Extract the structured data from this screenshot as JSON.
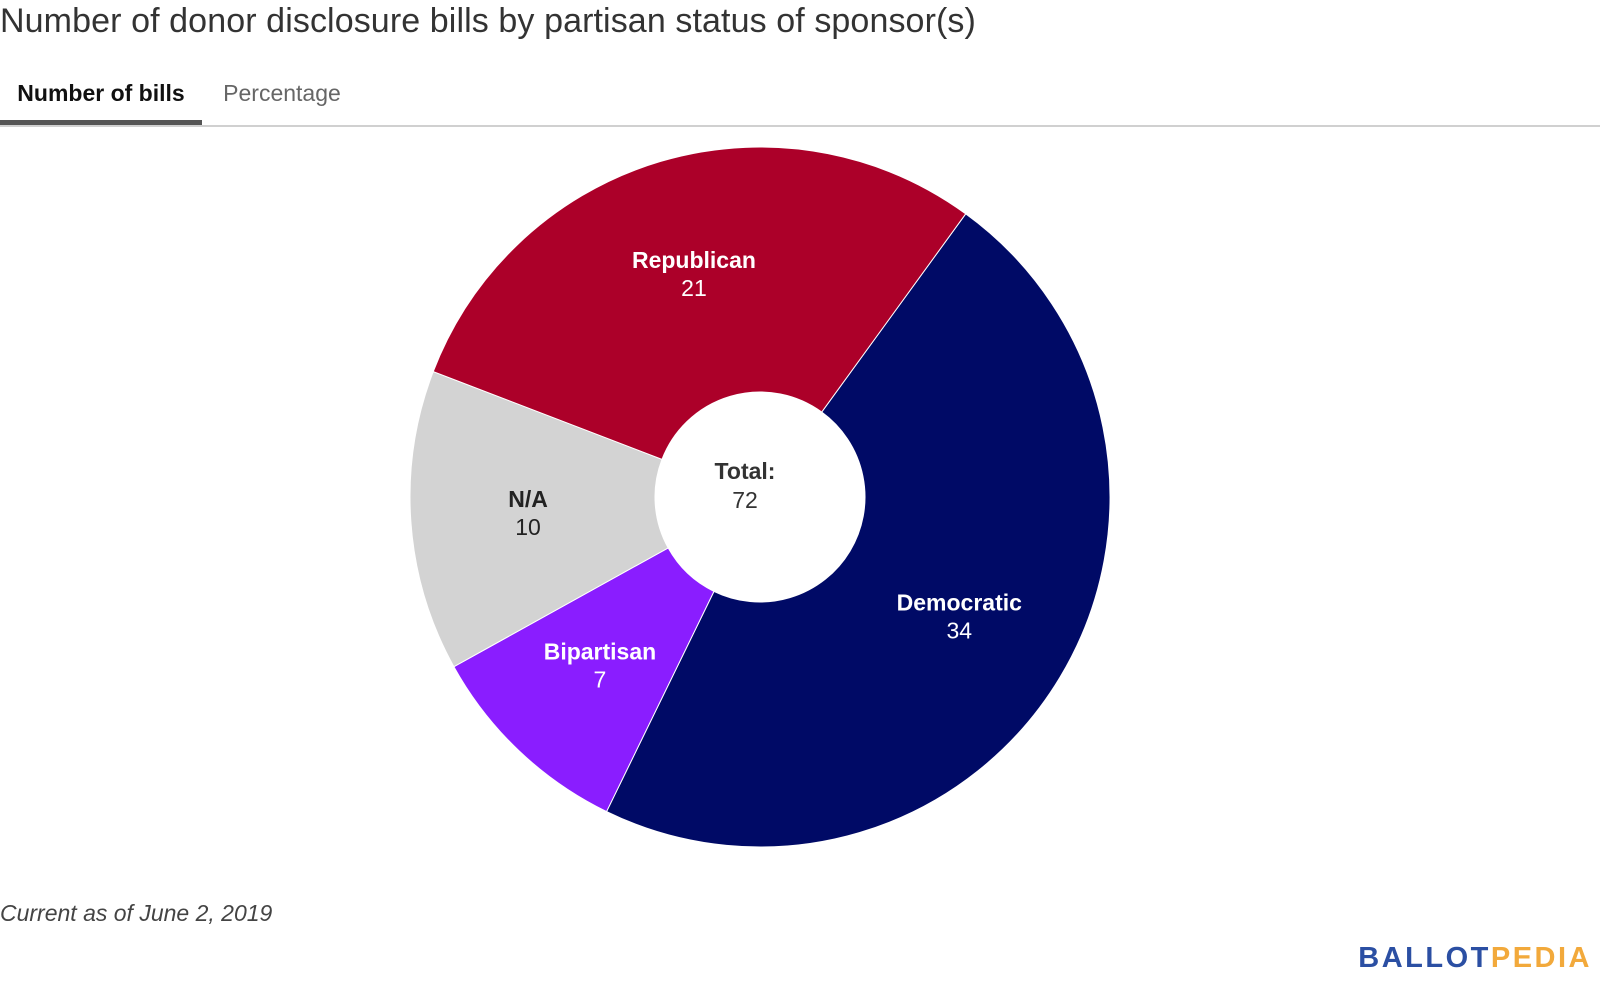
{
  "title": "Number of donor disclosure bills by partisan status of sponsor(s)",
  "tabs": [
    {
      "label": "Number of bills",
      "active": true
    },
    {
      "label": "Percentage",
      "active": false
    }
  ],
  "footnote": "Current as of June 2, 2019",
  "logo": {
    "part1": "BALLOT",
    "part2": "PEDIA",
    "color1": "#2b4fa3",
    "color2": "#f2a93b"
  },
  "chart_data": {
    "type": "pie",
    "donut": true,
    "title": "",
    "center_label": "Total:",
    "center_value": "72",
    "categories": [
      "Democratic",
      "Bipartisan",
      "N/A",
      "Republican"
    ],
    "values": [
      34,
      7,
      10,
      21
    ],
    "colors": [
      "#000a66",
      "#8a1dff",
      "#d3d3d3",
      "#ac0029"
    ],
    "label_colors": [
      "#ffffff",
      "#ffffff",
      "#222222",
      "#ffffff"
    ],
    "start_angle_deg": 36,
    "direction": "clockwise"
  }
}
